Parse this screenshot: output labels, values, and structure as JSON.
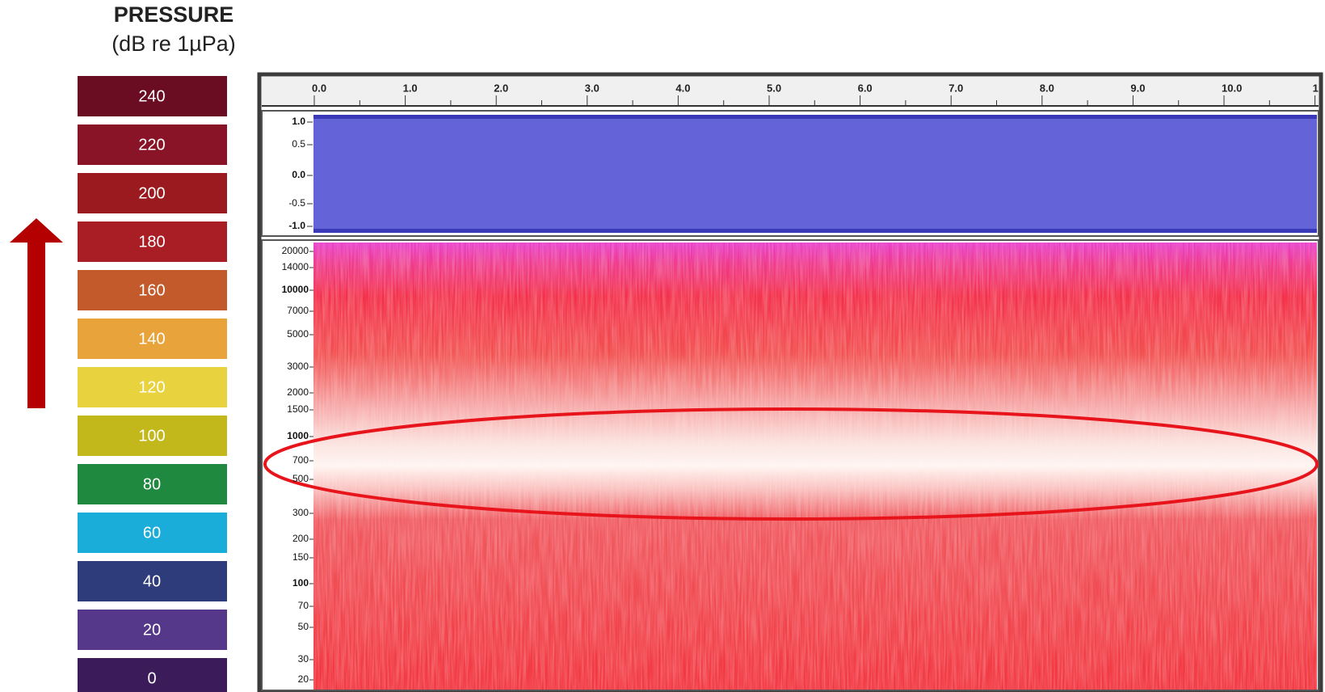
{
  "legend": {
    "title": "PRESSURE",
    "subtitle": "(dB re 1µPa)",
    "levels": [
      {
        "label": "240",
        "color": "#6a0c22"
      },
      {
        "label": "220",
        "color": "#891427"
      },
      {
        "label": "200",
        "color": "#9a1a1f"
      },
      {
        "label": "180",
        "color": "#a81e24"
      },
      {
        "label": "160",
        "color": "#c35a2b"
      },
      {
        "label": "140",
        "color": "#e9a33b"
      },
      {
        "label": "120",
        "color": "#e8d23e"
      },
      {
        "label": "100",
        "color": "#c3b81b"
      },
      {
        "label": "80",
        "color": "#1f8a3f"
      },
      {
        "label": "60",
        "color": "#1badd9"
      },
      {
        "label": "40",
        "color": "#2f3c7b"
      },
      {
        "label": "20",
        "color": "#56388b"
      },
      {
        "label": "0",
        "color": "#3c1b5b"
      }
    ]
  },
  "timeline": {
    "labels": [
      "0.0",
      "1.0",
      "2.0",
      "3.0",
      "4.0",
      "5.0",
      "6.0",
      "7.0",
      "8.0",
      "9.0",
      "10.0",
      "1"
    ]
  },
  "waveform": {
    "labels": [
      "1.0",
      "0.5",
      "0.0",
      "-0.5",
      "-1.0"
    ]
  },
  "spectrogram": {
    "labels": [
      "20000",
      "14000",
      "10000",
      "7000",
      "5000",
      "3000",
      "2000",
      "1500",
      "1000",
      "700",
      "500",
      "300",
      "200",
      "150",
      "100",
      "70",
      "50",
      "30",
      "20"
    ]
  }
}
